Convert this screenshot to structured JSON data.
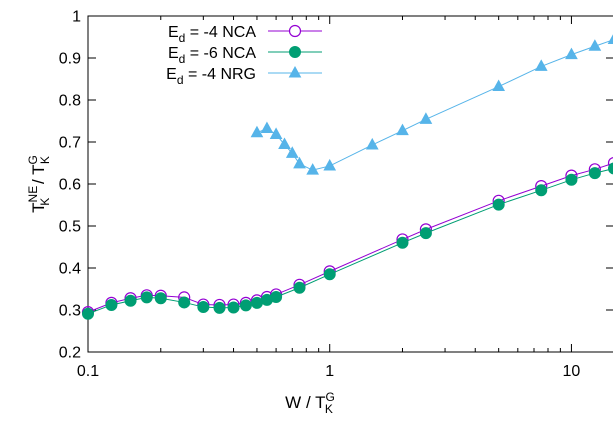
{
  "chart_data": {
    "type": "line",
    "xscale": "log",
    "xlim": [
      0.1,
      15
    ],
    "ylim": [
      0.2,
      1
    ],
    "grid": false,
    "legend_position": "top-left",
    "xlabel": {
      "main": "W / T",
      "sup": "G",
      "sub": "K"
    },
    "ylabel": {
      "p1": "T",
      "p1_sup": "NE",
      "p1_sub": "K",
      "sep": " / T",
      "p2_sup": "G",
      "p2_sub": "K"
    },
    "xticks": [
      {
        "value": 0.1,
        "label": "0.1"
      },
      {
        "value": 1,
        "label": "1"
      },
      {
        "value": 10,
        "label": "10"
      }
    ],
    "yticks": [
      {
        "value": 0.2,
        "label": "0.2"
      },
      {
        "value": 0.3,
        "label": "0.3"
      },
      {
        "value": 0.4,
        "label": "0.4"
      },
      {
        "value": 0.5,
        "label": "0.5"
      },
      {
        "value": 0.6,
        "label": "0.6"
      },
      {
        "value": 0.7,
        "label": "0.7"
      },
      {
        "value": 0.8,
        "label": "0.8"
      },
      {
        "value": 0.9,
        "label": "0.9"
      },
      {
        "value": 1,
        "label": "1"
      }
    ],
    "series": [
      {
        "name": "E_d = -4 NCA",
        "label": {
          "pre": "E",
          "sub": "d",
          "post": " = -4 NCA"
        },
        "color": "#9400d3",
        "marker": "open-circle",
        "x": [
          0.1,
          0.125,
          0.15,
          0.175,
          0.2,
          0.25,
          0.3,
          0.35,
          0.4,
          0.45,
          0.5,
          0.55,
          0.6,
          0.75,
          1.0,
          2.0,
          2.5,
          5.0,
          7.5,
          10.0,
          12.5,
          15.0
        ],
        "y": [
          0.295,
          0.317,
          0.328,
          0.335,
          0.334,
          0.33,
          0.313,
          0.312,
          0.313,
          0.317,
          0.323,
          0.331,
          0.337,
          0.36,
          0.392,
          0.468,
          0.492,
          0.56,
          0.595,
          0.62,
          0.635,
          0.65
        ]
      },
      {
        "name": "E_d = -6 NCA",
        "label": {
          "pre": "E",
          "sub": "d",
          "post": " = -6 NCA"
        },
        "color": "#009e73",
        "marker": "filled-circle",
        "x": [
          0.1,
          0.125,
          0.15,
          0.175,
          0.2,
          0.25,
          0.3,
          0.35,
          0.4,
          0.45,
          0.5,
          0.55,
          0.6,
          0.75,
          1.0,
          2.0,
          2.5,
          5.0,
          7.5,
          10.0,
          12.5,
          15.0
        ],
        "y": [
          0.291,
          0.312,
          0.322,
          0.33,
          0.328,
          0.318,
          0.307,
          0.305,
          0.306,
          0.311,
          0.317,
          0.324,
          0.331,
          0.353,
          0.385,
          0.46,
          0.483,
          0.551,
          0.585,
          0.61,
          0.626,
          0.637
        ]
      },
      {
        "name": "E_d = -4 NRG",
        "label": {
          "pre": "E",
          "sub": "d",
          "post": " = -4 NRG"
        },
        "color": "#56b4e9",
        "marker": "filled-triangle",
        "x": [
          0.5,
          0.55,
          0.6,
          0.65,
          0.7,
          0.75,
          0.85,
          1.0,
          1.5,
          2.0,
          2.5,
          5.0,
          7.5,
          10.0,
          12.5,
          15.0
        ],
        "y": [
          0.722,
          0.732,
          0.718,
          0.694,
          0.673,
          0.648,
          0.633,
          0.643,
          0.693,
          0.727,
          0.754,
          0.832,
          0.88,
          0.908,
          0.928,
          0.944
        ]
      }
    ]
  }
}
